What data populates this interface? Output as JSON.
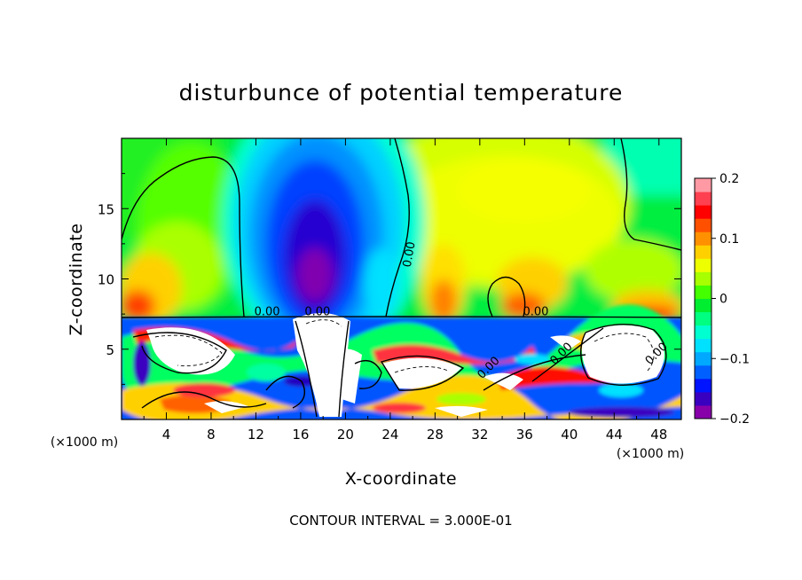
{
  "chart_data": {
    "type": "heatmap",
    "title": "disturbunce of potential temperature",
    "xlabel": "X-coordinate",
    "ylabel": "Z-coordinate",
    "x_unit": "(×1000 m)",
    "z_unit": "(×1000 m)",
    "footer": "CONTOUR INTERVAL = 3.000E-01",
    "xlim": [
      0,
      50
    ],
    "ylim": [
      0,
      20
    ],
    "x_ticks": [
      "4",
      "8",
      "12",
      "16",
      "20",
      "24",
      "28",
      "32",
      "36",
      "40",
      "44",
      "48"
    ],
    "y_ticks": [
      "5",
      "10",
      "15"
    ],
    "colorbar": {
      "range": [
        -0.2,
        0.2
      ],
      "tick_labels": [
        "0.2",
        "0.1",
        "0",
        "−0.1",
        "−0.2"
      ],
      "colors": [
        "#8800aa",
        "#3a00c0",
        "#0014ff",
        "#0060ff",
        "#00a8ff",
        "#00e0ff",
        "#00ffd0",
        "#00ff80",
        "#00ee30",
        "#44ff00",
        "#a8ff00",
        "#eeff00",
        "#ffd000",
        "#ff9000",
        "#ff5000",
        "#ff0000",
        "#ff4050",
        "#ff9aa4"
      ]
    },
    "contour_labels": [
      {
        "text": "0.00",
        "x": 13.0,
        "z": 7.4
      },
      {
        "text": "0.00",
        "x": 17.5,
        "z": 7.4
      },
      {
        "text": "0.00",
        "x": 26.0,
        "z": 11.7
      },
      {
        "text": "0.00",
        "x": 37.0,
        "z": 7.4
      },
      {
        "text": "0.00",
        "x": 33.0,
        "z": 3.5
      },
      {
        "text": "0.00",
        "x": 39.5,
        "z": 4.5
      },
      {
        "text": "0.00",
        "x": 48.0,
        "z": 4.5
      }
    ]
  }
}
